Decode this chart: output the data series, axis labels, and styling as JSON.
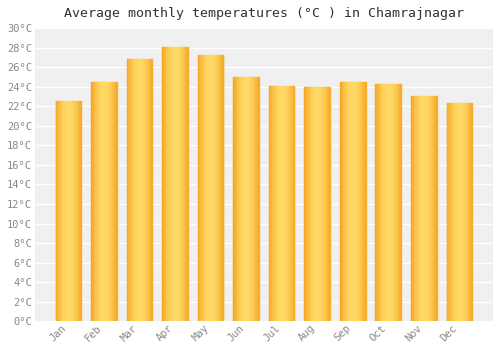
{
  "title": "Average monthly temperatures (°C ) in Chamrajnagar",
  "months": [
    "Jan",
    "Feb",
    "Mar",
    "Apr",
    "May",
    "Jun",
    "Jul",
    "Aug",
    "Sep",
    "Oct",
    "Nov",
    "Dec"
  ],
  "values": [
    22.5,
    24.5,
    26.8,
    28.1,
    27.2,
    25.0,
    24.1,
    24.0,
    24.5,
    24.3,
    23.1,
    22.3
  ],
  "bar_color_center": "#FFD966",
  "bar_color_edge": "#F5A623",
  "ylim": [
    0,
    30
  ],
  "ytick_step": 2,
  "background_color": "#ffffff",
  "plot_bg_color": "#f0f0f0",
  "grid_color": "#ffffff",
  "title_fontsize": 9.5,
  "tick_fontsize": 7.5,
  "title_color": "#333333",
  "tick_color": "#888888"
}
